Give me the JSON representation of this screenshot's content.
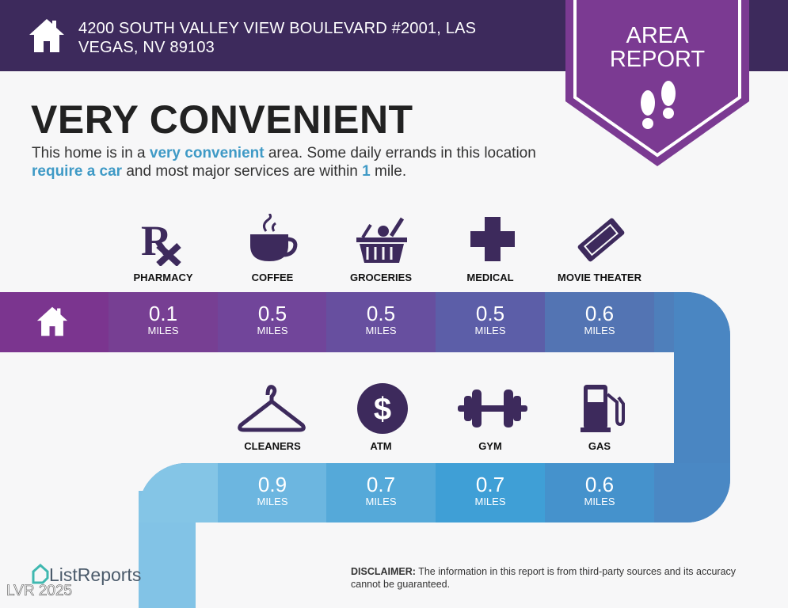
{
  "header": {
    "address": "4200 SOUTH VALLEY VIEW BOULEVARD #2001, LAS VEGAS, NV 89103",
    "icon": "home-icon"
  },
  "badge": {
    "line1": "AREA",
    "line2": "REPORT",
    "icon": "footprints-icon"
  },
  "title": "VERY CONVENIENT",
  "description": {
    "p1": "This home is in a ",
    "h1": "very convenient",
    "p2": " area. Some daily errands in this location ",
    "h2": "require a car",
    "p3": " and most major services are within ",
    "h3": "1",
    "p4": " mile."
  },
  "colors": {
    "header": "#3d2a5c",
    "badge": "#7b3a92",
    "accent": "#3f9ac6"
  },
  "row1": [
    {
      "label": "PHARMACY",
      "value": "0.1",
      "unit": "MILES",
      "icon": "rx-icon"
    },
    {
      "label": "COFFEE",
      "value": "0.5",
      "unit": "MILES",
      "icon": "coffee-cup-icon"
    },
    {
      "label": "GROCERIES",
      "value": "0.5",
      "unit": "MILES",
      "icon": "grocery-basket-icon"
    },
    {
      "label": "MEDICAL",
      "value": "0.5",
      "unit": "MILES",
      "icon": "medical-cross-icon"
    },
    {
      "label": "MOVIE THEATER",
      "value": "0.6",
      "unit": "MILES",
      "icon": "movie-ticket-icon"
    }
  ],
  "row2": [
    {
      "label": "CLEANERS",
      "value": "0.9",
      "unit": "MILES",
      "icon": "hanger-icon"
    },
    {
      "label": "ATM",
      "value": "0.7",
      "unit": "MILES",
      "icon": "dollar-icon"
    },
    {
      "label": "GYM",
      "value": "0.7",
      "unit": "MILES",
      "icon": "dumbbell-icon"
    },
    {
      "label": "GAS",
      "value": "0.6",
      "unit": "MILES",
      "icon": "gas-pump-icon"
    }
  ],
  "footer": {
    "logo": "ListReports",
    "watermark": "LVR 2025",
    "disclaimer_label": "DISCLAIMER:",
    "disclaimer": " The information in this report is from third-party sources and its accuracy cannot be guaranteed."
  }
}
